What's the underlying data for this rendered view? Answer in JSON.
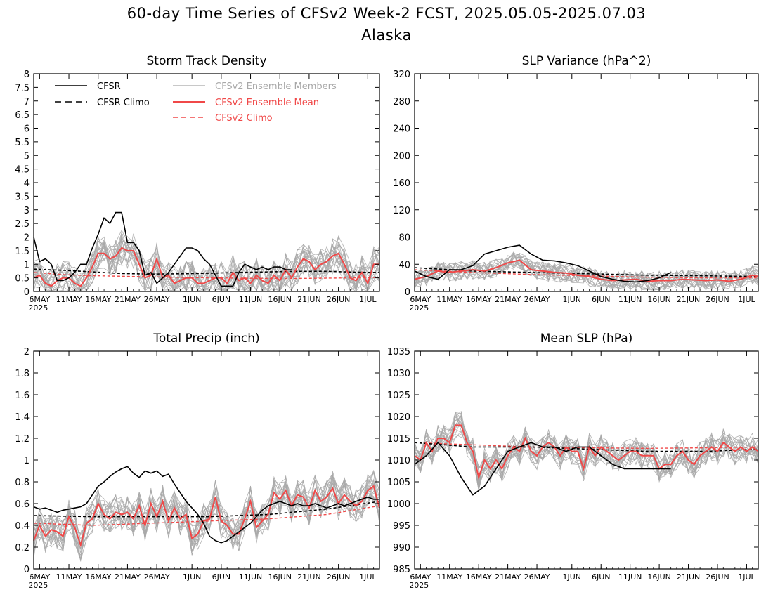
{
  "figure": {
    "title": "60-day Time Series of CFSv2 Week-2 FCST, 2025.05.05-2025.07.03",
    "subtitle": "Alaska"
  },
  "legend": {
    "cfsr": "CFSR",
    "cfsr_climo": "CFSR Climo",
    "members": "CFSv2 Ensemble Members",
    "ens_mean": "CFSv2 Ensemble Mean",
    "cfsv2_climo": "CFSv2 Climo"
  },
  "colors": {
    "cfsr": "#000000",
    "cfsr_climo": "#000000",
    "members": "#a8a8a8",
    "ens_mean": "#f04848",
    "cfsv2_climo": "#f04848"
  },
  "x_axis": {
    "tick_labels": [
      "6MAY",
      "11MAY",
      "16MAY",
      "21MAY",
      "26MAY",
      "1JUN",
      "6JUN",
      "11JUN",
      "16JUN",
      "21JUN",
      "26JUN",
      "1JUL"
    ],
    "tick_days": [
      1,
      6,
      11,
      16,
      21,
      27,
      32,
      37,
      42,
      47,
      52,
      57
    ],
    "year_label": "2025",
    "day0": "5MAY",
    "n_days": 60
  },
  "chart_data": [
    {
      "type": "line",
      "title": "Storm Track Density",
      "ylim": [
        0,
        8
      ],
      "yticks": [
        0,
        0.5,
        1,
        1.5,
        2,
        2.5,
        3,
        3.5,
        4,
        4.5,
        5,
        5.5,
        6,
        6.5,
        7,
        7.5,
        8
      ],
      "ytick_labels": [
        "0",
        "0.5",
        "1",
        "1.5",
        "2",
        "2.5",
        "3",
        "3.5",
        "4",
        "4.5",
        "5",
        "5.5",
        "6",
        "6.5",
        "7",
        "7.5",
        "8"
      ],
      "series": [
        {
          "name": "CFSR",
          "style": "cfsr",
          "x": [
            0,
            1,
            2,
            3,
            4,
            5,
            6,
            7,
            8,
            9,
            10,
            11,
            12,
            13,
            14,
            15,
            16,
            17,
            18,
            19,
            20,
            21,
            22,
            23,
            24,
            25,
            26,
            27,
            28,
            29,
            30,
            31,
            32,
            33,
            34,
            35,
            36,
            37,
            38,
            39,
            40,
            41,
            42,
            43,
            44
          ],
          "values": [
            2.0,
            1.1,
            1.2,
            1.0,
            0.4,
            0.4,
            0.5,
            0.7,
            1.0,
            1.0,
            1.6,
            2.1,
            2.7,
            2.5,
            2.9,
            2.9,
            1.8,
            1.8,
            1.5,
            0.6,
            0.7,
            0.3,
            0.5,
            0.7,
            1.0,
            1.3,
            1.6,
            1.6,
            1.5,
            1.2,
            1.0,
            0.6,
            0.2,
            0.2,
            0.2,
            0.7,
            1.0,
            0.9,
            0.8,
            0.9,
            0.8,
            0.9,
            0.9,
            0.8,
            0.8
          ]
        },
        {
          "name": "CFSR Climo",
          "style": "cfsr_climo",
          "x": [
            0,
            5,
            10,
            15,
            20,
            25,
            30,
            35,
            40,
            45,
            50,
            55,
            59
          ],
          "values": [
            0.82,
            0.78,
            0.72,
            0.66,
            0.64,
            0.65,
            0.67,
            0.7,
            0.72,
            0.74,
            0.74,
            0.71,
            0.7
          ]
        },
        {
          "name": "CFSv2 Ensemble Mean",
          "style": "ens_mean",
          "x": [
            0,
            1,
            2,
            3,
            4,
            5,
            6,
            7,
            8,
            9,
            10,
            11,
            12,
            13,
            14,
            15,
            16,
            17,
            18,
            19,
            20,
            21,
            22,
            23,
            24,
            25,
            26,
            27,
            28,
            29,
            30,
            31,
            32,
            33,
            34,
            35,
            36,
            37,
            38,
            39,
            40,
            41,
            42,
            43,
            44,
            45,
            46,
            47,
            48,
            49,
            50,
            51,
            52,
            53,
            54,
            55,
            56,
            57,
            58,
            59
          ],
          "values": [
            0.5,
            0.6,
            0.3,
            0.2,
            0.4,
            0.5,
            0.5,
            0.3,
            0.2,
            0.5,
            0.9,
            1.4,
            1.4,
            1.2,
            1.3,
            1.6,
            1.5,
            1.5,
            1.0,
            0.5,
            0.6,
            1.2,
            0.5,
            0.6,
            0.3,
            0.4,
            0.5,
            0.5,
            0.3,
            0.3,
            0.4,
            0.5,
            0.5,
            0.3,
            0.7,
            0.4,
            0.5,
            0.3,
            0.6,
            0.4,
            0.3,
            0.6,
            0.4,
            0.8,
            0.5,
            0.9,
            1.2,
            1.1,
            0.8,
            1.0,
            1.1,
            1.3,
            1.4,
            1.0,
            0.5,
            0.4,
            0.7,
            0.3,
            1.0,
            1.0
          ]
        },
        {
          "name": "CFSv2 Climo",
          "style": "cfsv2_climo",
          "x": [
            0,
            5,
            10,
            15,
            20,
            25,
            30,
            35,
            40,
            45,
            50,
            55,
            59
          ],
          "values": [
            0.7,
            0.62,
            0.58,
            0.56,
            0.54,
            0.52,
            0.5,
            0.49,
            0.48,
            0.48,
            0.49,
            0.5,
            0.52
          ]
        }
      ]
    },
    {
      "type": "line",
      "title": "SLP Variance (hPa^2)",
      "ylim": [
        0,
        320
      ],
      "yticks": [
        0,
        40,
        80,
        120,
        160,
        200,
        240,
        280,
        320
      ],
      "ytick_labels": [
        "0",
        "40",
        "80",
        "120",
        "160",
        "200",
        "240",
        "280",
        "320"
      ],
      "series": [
        {
          "name": "CFSR",
          "style": "cfsr",
          "x": [
            0,
            2,
            4,
            6,
            8,
            10,
            12,
            14,
            16,
            18,
            20,
            22,
            24,
            26,
            28,
            30,
            32,
            34,
            36,
            38,
            40,
            42,
            44
          ],
          "values": [
            30,
            22,
            18,
            32,
            32,
            38,
            55,
            60,
            65,
            68,
            55,
            46,
            45,
            42,
            38,
            30,
            22,
            18,
            15,
            14,
            16,
            20,
            28
          ]
        },
        {
          "name": "CFSR Climo",
          "style": "cfsr_climo",
          "x": [
            0,
            10,
            20,
            30,
            40,
            50,
            59
          ],
          "values": [
            35,
            30,
            28,
            26,
            24,
            23,
            22
          ]
        },
        {
          "name": "CFSv2 Ensemble Mean",
          "style": "ens_mean",
          "x": [
            0,
            2,
            4,
            6,
            8,
            10,
            12,
            14,
            16,
            18,
            20,
            22,
            24,
            26,
            28,
            30,
            32,
            34,
            36,
            38,
            40,
            42,
            44,
            46,
            48,
            50,
            52,
            54,
            56,
            58,
            59
          ],
          "values": [
            18,
            22,
            30,
            28,
            30,
            32,
            30,
            35,
            42,
            46,
            32,
            30,
            28,
            27,
            24,
            22,
            18,
            16,
            17,
            18,
            15,
            16,
            16,
            18,
            17,
            16,
            17,
            15,
            18,
            24,
            22
          ]
        },
        {
          "name": "CFSv2 Climo",
          "style": "cfsv2_climo",
          "x": [
            0,
            10,
            20,
            30,
            40,
            50,
            59
          ],
          "values": [
            32,
            28,
            25,
            23,
            21,
            20,
            20
          ]
        }
      ]
    },
    {
      "type": "line",
      "title": "Total Precip (inch)",
      "ylim": [
        0,
        2
      ],
      "yticks": [
        0,
        0.2,
        0.4,
        0.6,
        0.8,
        1,
        1.2,
        1.4,
        1.6,
        1.8,
        2
      ],
      "ytick_labels": [
        "0",
        "0.2",
        "0.4",
        "0.6",
        "0.8",
        "1",
        "1.2",
        "1.4",
        "1.6",
        "1.8",
        "2"
      ],
      "series": [
        {
          "name": "CFSR",
          "style": "cfsr",
          "x": [
            0,
            1,
            2,
            3,
            4,
            5,
            6,
            7,
            8,
            9,
            10,
            11,
            12,
            13,
            14,
            15,
            16,
            17,
            18,
            19,
            20,
            21,
            22,
            23,
            24,
            25,
            26,
            27,
            28,
            29,
            30,
            31,
            32,
            33,
            34,
            35,
            36,
            37,
            38,
            39,
            40,
            41,
            42,
            43,
            44,
            45,
            46,
            47,
            48,
            49,
            50,
            51,
            52,
            53,
            54,
            55,
            56,
            57,
            58,
            59
          ],
          "values": [
            0.57,
            0.55,
            0.56,
            0.54,
            0.52,
            0.54,
            0.55,
            0.56,
            0.57,
            0.6,
            0.68,
            0.76,
            0.8,
            0.85,
            0.89,
            0.92,
            0.94,
            0.88,
            0.84,
            0.9,
            0.88,
            0.9,
            0.85,
            0.87,
            0.78,
            0.7,
            0.62,
            0.56,
            0.5,
            0.42,
            0.3,
            0.26,
            0.24,
            0.26,
            0.3,
            0.34,
            0.38,
            0.42,
            0.48,
            0.54,
            0.58,
            0.6,
            0.62,
            0.6,
            0.58,
            0.6,
            0.58,
            0.58,
            0.6,
            0.58,
            0.56,
            0.58,
            0.6,
            0.58,
            0.6,
            0.62,
            0.64,
            0.66,
            0.64,
            0.64
          ]
        },
        {
          "name": "CFSR Climo",
          "style": "cfsr_climo",
          "x": [
            0,
            10,
            20,
            30,
            40,
            50,
            59
          ],
          "values": [
            0.49,
            0.48,
            0.48,
            0.48,
            0.5,
            0.55,
            0.62
          ]
        },
        {
          "name": "CFSv2 Ensemble Mean",
          "style": "ens_mean",
          "x": [
            0,
            1,
            2,
            3,
            4,
            5,
            6,
            7,
            8,
            9,
            10,
            11,
            12,
            13,
            14,
            15,
            16,
            17,
            18,
            19,
            20,
            21,
            22,
            23,
            24,
            25,
            26,
            27,
            28,
            29,
            30,
            31,
            32,
            33,
            34,
            35,
            36,
            37,
            38,
            39,
            40,
            41,
            42,
            43,
            44,
            45,
            46,
            47,
            48,
            49,
            50,
            51,
            52,
            53,
            54,
            55,
            56,
            57,
            58,
            59
          ],
          "values": [
            0.26,
            0.4,
            0.3,
            0.36,
            0.34,
            0.3,
            0.48,
            0.38,
            0.22,
            0.42,
            0.46,
            0.6,
            0.5,
            0.46,
            0.52,
            0.5,
            0.52,
            0.46,
            0.58,
            0.4,
            0.6,
            0.48,
            0.62,
            0.44,
            0.56,
            0.46,
            0.5,
            0.28,
            0.32,
            0.44,
            0.46,
            0.66,
            0.44,
            0.4,
            0.32,
            0.32,
            0.46,
            0.62,
            0.38,
            0.44,
            0.5,
            0.7,
            0.64,
            0.72,
            0.58,
            0.68,
            0.66,
            0.56,
            0.72,
            0.62,
            0.66,
            0.74,
            0.6,
            0.68,
            0.62,
            0.58,
            0.62,
            0.72,
            0.76,
            0.56
          ]
        },
        {
          "name": "CFSv2 Climo",
          "style": "cfsv2_climo",
          "x": [
            0,
            10,
            20,
            30,
            40,
            50,
            59
          ],
          "values": [
            0.42,
            0.4,
            0.42,
            0.44,
            0.46,
            0.5,
            0.58
          ]
        }
      ]
    },
    {
      "type": "line",
      "title": "Mean SLP (hPa)",
      "ylim": [
        985,
        1035
      ],
      "yticks": [
        985,
        990,
        995,
        1000,
        1005,
        1010,
        1015,
        1020,
        1025,
        1030,
        1035
      ],
      "ytick_labels": [
        "985",
        "990",
        "995",
        "1000",
        "1005",
        "1010",
        "1015",
        "1020",
        "1025",
        "1030",
        "1035"
      ],
      "series": [
        {
          "name": "CFSR",
          "style": "cfsr",
          "x": [
            0,
            2,
            4,
            6,
            8,
            10,
            12,
            14,
            16,
            18,
            20,
            22,
            24,
            26,
            28,
            30,
            32,
            34,
            36,
            38,
            40,
            42,
            44
          ],
          "values": [
            1009,
            1011,
            1014,
            1011,
            1006,
            1002,
            1004,
            1008,
            1012,
            1013,
            1014,
            1013,
            1013,
            1012,
            1013,
            1013,
            1011,
            1009,
            1008,
            1008,
            1008,
            1008,
            1008
          ]
        },
        {
          "name": "CFSR Climo",
          "style": "cfsr_climo",
          "x": [
            0,
            10,
            20,
            30,
            40,
            50,
            59
          ],
          "values": [
            1014,
            1013,
            1013,
            1012.5,
            1012,
            1012,
            1012.5
          ]
        },
        {
          "name": "CFSv2 Ensemble Mean",
          "style": "ens_mean",
          "x": [
            0,
            1,
            2,
            3,
            4,
            5,
            6,
            7,
            8,
            9,
            10,
            11,
            12,
            13,
            14,
            15,
            16,
            17,
            18,
            19,
            20,
            21,
            22,
            23,
            24,
            25,
            26,
            27,
            28,
            29,
            30,
            31,
            32,
            33,
            34,
            35,
            36,
            37,
            38,
            39,
            40,
            41,
            42,
            43,
            44,
            45,
            46,
            47,
            48,
            49,
            50,
            51,
            52,
            53,
            54,
            55,
            56,
            57,
            58,
            59
          ],
          "values": [
            1011,
            1010,
            1014,
            1012,
            1015,
            1015,
            1014,
            1018,
            1018,
            1014,
            1012,
            1006,
            1010,
            1008,
            1010,
            1008,
            1011,
            1013,
            1012,
            1015,
            1012,
            1011,
            1013,
            1014,
            1013,
            1011,
            1013,
            1012,
            1012,
            1008,
            1013,
            1011,
            1013,
            1012,
            1011,
            1010,
            1011,
            1012,
            1012,
            1011,
            1011,
            1011,
            1008,
            1009,
            1009,
            1011,
            1012,
            1010,
            1009,
            1011,
            1012,
            1013,
            1012,
            1014,
            1013,
            1012,
            1013,
            1012,
            1013,
            1012
          ]
        },
        {
          "name": "CFSv2 Climo",
          "style": "cfsv2_climo",
          "x": [
            0,
            10,
            20,
            30,
            40,
            50,
            59
          ],
          "values": [
            1014,
            1013.5,
            1013,
            1012.8,
            1012.7,
            1012.8,
            1013
          ]
        }
      ]
    }
  ]
}
